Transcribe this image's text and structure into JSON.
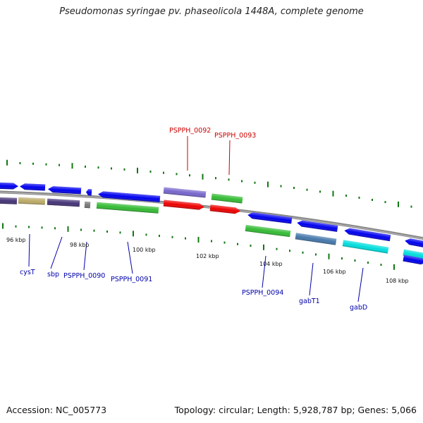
{
  "title": "Pseudomonas syringae pv. phaseolicola 1448A, complete genome",
  "footer": {
    "accession": "Accession: NC_005773",
    "topology": "Topology: circular; Length: 5,928,787 bp; Genes: 5,066"
  },
  "colors": {
    "gene_blue": "#0000ee",
    "gene_red": "#ee0000",
    "gene_green": "#33bb33",
    "gene_purple": "#7766cc",
    "gene_darkpurple": "#443377",
    "gene_khaki": "#bbaa66",
    "gene_steel": "#4477aa",
    "gene_cyan": "#00dddd",
    "gene_gray": "#777777",
    "tick_green": "#117711",
    "backbone": "#888888",
    "label_blue": "#0000aa",
    "label_red": "#cc0000"
  },
  "scale_labels": [
    "96 kbp",
    "98 kbp",
    "100 kbp",
    "102 kbp",
    "104 kbp",
    "106 kbp",
    "108 kbp"
  ],
  "gene_labels": [
    {
      "text": "PSPPH_0092",
      "color": "red"
    },
    {
      "text": "PSPPH_0093",
      "color": "red"
    },
    {
      "text": "cysT",
      "color": "blue"
    },
    {
      "text": "sbp",
      "color": "blue"
    },
    {
      "text": "PSPPH_0090",
      "color": "blue"
    },
    {
      "text": "PSPPH_0091",
      "color": "blue"
    },
    {
      "text": "PSPPH_0094",
      "color": "blue"
    },
    {
      "text": "gabT1",
      "color": "blue"
    },
    {
      "text": "gabD",
      "color": "blue"
    }
  ]
}
